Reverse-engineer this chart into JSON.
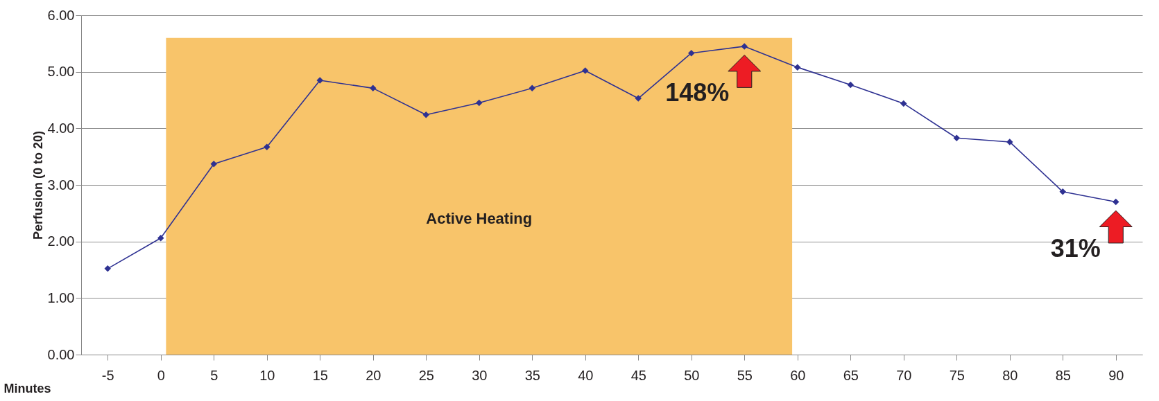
{
  "chart_data": {
    "type": "line",
    "xlabel": "Minutes",
    "ylabel": "Perfusion (0 to 20)",
    "categories": [
      "-5",
      "0",
      "5",
      "10",
      "15",
      "20",
      "25",
      "30",
      "35",
      "40",
      "45",
      "50",
      "55",
      "60",
      "65",
      "70",
      "75",
      "80",
      "85",
      "90"
    ],
    "series": [
      {
        "color": "#2e3192",
        "values": [
          1.52,
          2.06,
          3.37,
          3.67,
          4.85,
          4.71,
          4.24,
          4.45,
          4.71,
          5.02,
          4.53,
          5.33,
          5.45,
          5.08,
          4.77,
          4.44,
          3.83,
          3.76,
          2.88,
          2.7
        ]
      }
    ],
    "ylim": [
      0,
      6
    ],
    "yticks": [
      {
        "value": 0,
        "label": "0.00"
      },
      {
        "value": 1,
        "label": "1.00"
      },
      {
        "value": 2,
        "label": "2.00"
      },
      {
        "value": 3,
        "label": "3.00"
      },
      {
        "value": 4,
        "label": "4.00"
      },
      {
        "value": 5,
        "label": "5.00"
      },
      {
        "value": 6,
        "label": "6.00"
      }
    ],
    "bands": [
      {
        "axis": "x",
        "from": "0",
        "to": "60",
        "label": "Active Heating",
        "color": "#f8c46a"
      }
    ],
    "annotations": [
      {
        "text": "148%",
        "x": "55",
        "y": 5.45
      },
      {
        "text": "31%",
        "x": "90",
        "y": 2.7
      }
    ],
    "grid": "y",
    "marker": "diamond",
    "line_style": "solid"
  }
}
